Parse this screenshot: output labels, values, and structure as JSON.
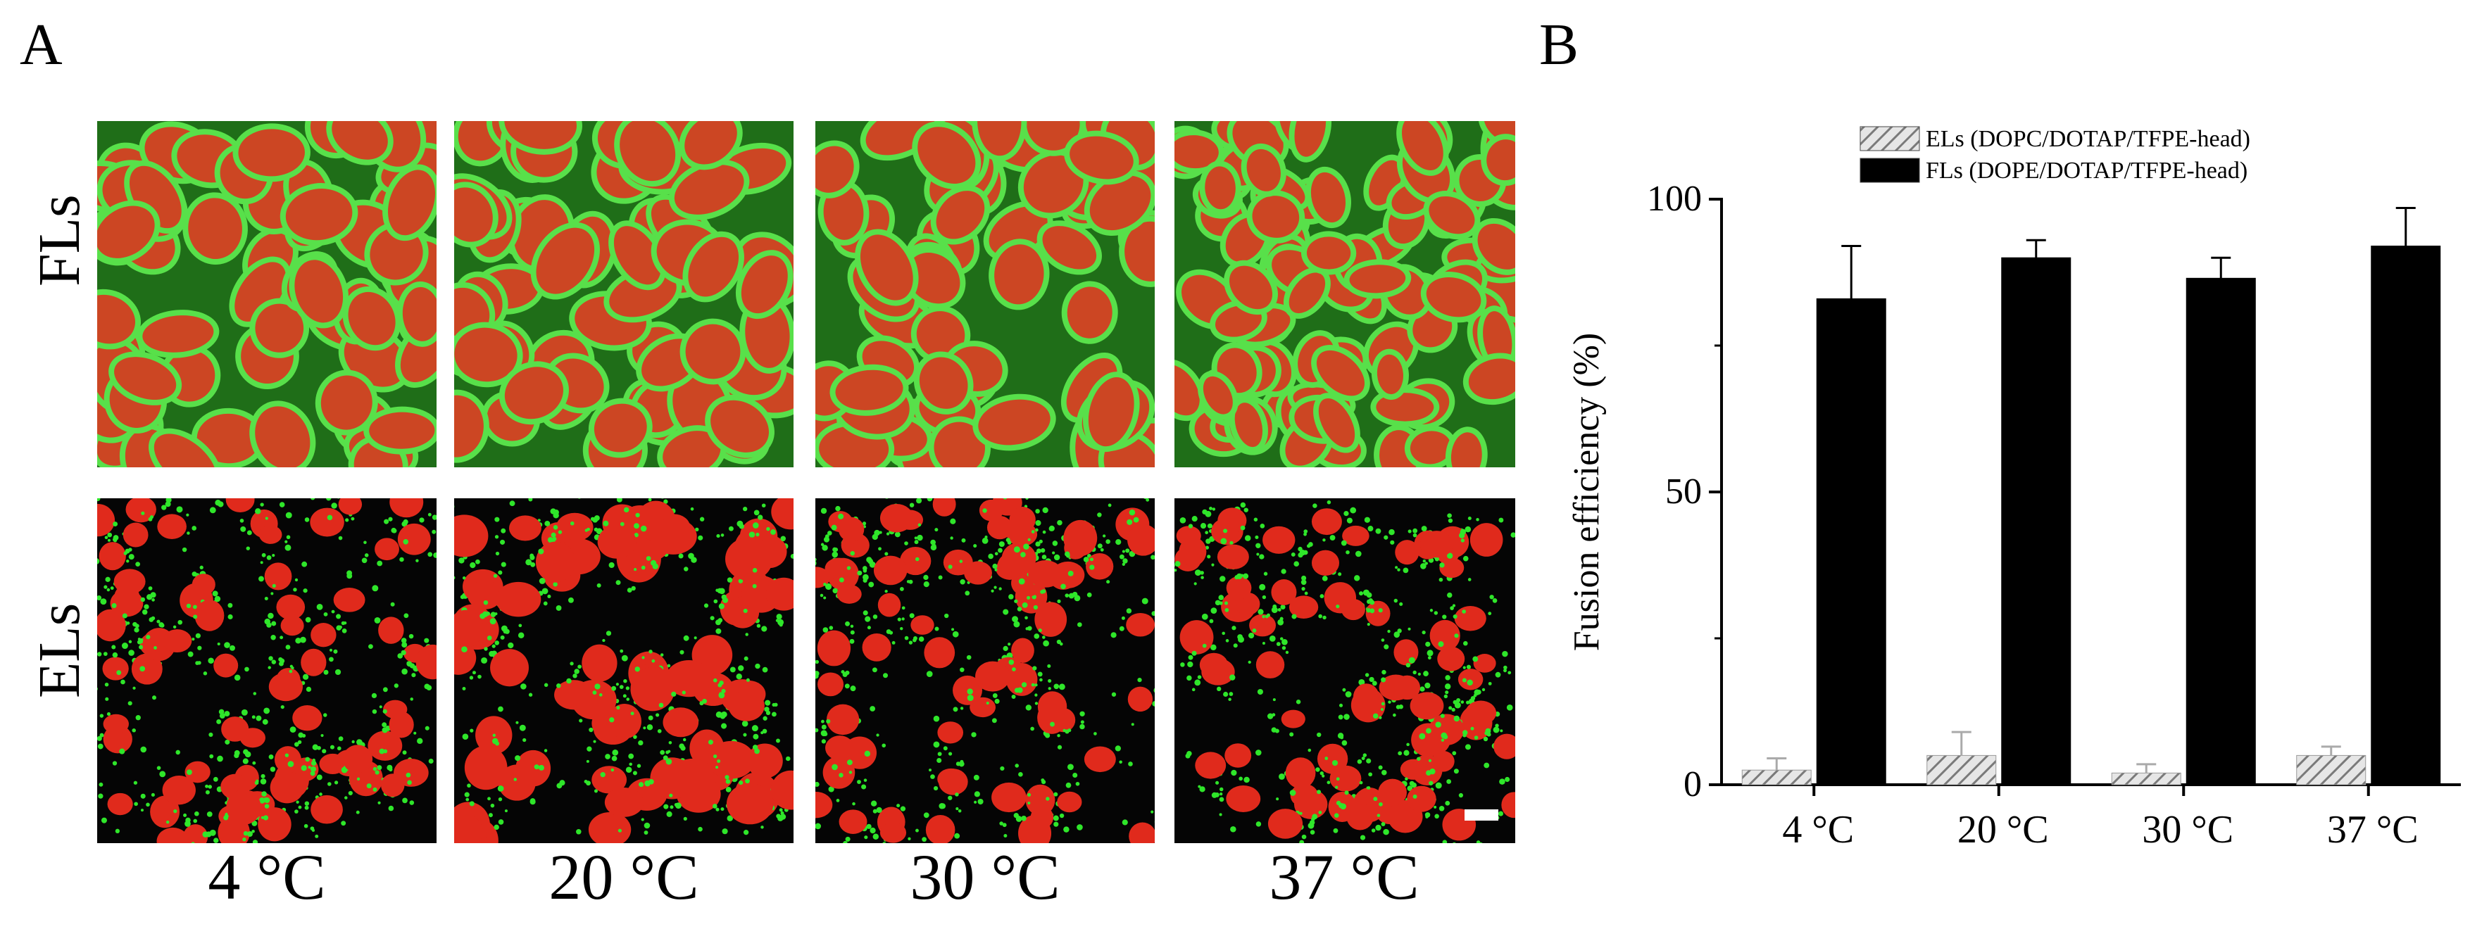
{
  "panel_a": {
    "letter": "A",
    "row_labels": [
      "FLs",
      "ELs"
    ],
    "column_labels": [
      "4 °C",
      "20 °C",
      "30 °C",
      "37 °C"
    ]
  },
  "panel_b": {
    "letter": "B"
  },
  "colors": {
    "membrane_green": "#2fe62a",
    "nucleus_red": "#e02a1c",
    "bar_fls": "#000000",
    "bar_els_hatch": "#9a9a9a"
  },
  "chart_data": {
    "type": "bar",
    "categories": [
      "4 °C",
      "20 °C",
      "30 °C",
      "37 °C"
    ],
    "series": [
      {
        "name": "ELs (DOPC/DOTAP/TFPE-head)",
        "values": [
          2.5,
          5,
          2,
          5
        ],
        "errors": [
          2,
          4,
          1.5,
          1.5
        ],
        "style": "hatched"
      },
      {
        "name": "FLs (DOPE/DOTAP/TFPE-head)",
        "values": [
          83,
          90,
          86.5,
          92
        ],
        "errors": [
          9,
          3,
          3.5,
          6.5
        ],
        "style": "solid"
      }
    ],
    "title": "",
    "xlabel": "",
    "ylabel": "Fusion efficiency (%)",
    "ylim": [
      0,
      100
    ],
    "yticks": [
      0,
      50,
      100
    ],
    "grid": false,
    "legend": "top-center"
  }
}
